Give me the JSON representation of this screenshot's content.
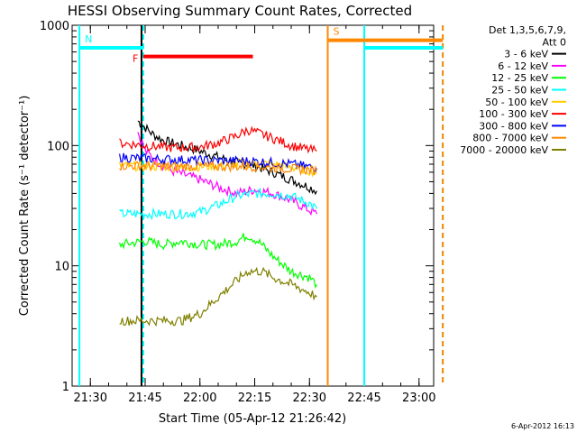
{
  "chart_data": {
    "type": "line",
    "title": "HESSI Observing Summary Count Rates, Corrected",
    "xlabel": "Start Time (05-Apr-12 21:26:42)",
    "ylabel": "Corrected Count Rate (s⁻¹ detector⁻¹)",
    "timestamp": "6-Apr-2012 16:13",
    "x_unit": "minutes",
    "xlim": [
      21.4167,
      23.0667
    ],
    "ylim": [
      1,
      1000
    ],
    "y_scale": "log",
    "x_ticks": [
      "21:30",
      "21:45",
      "22:00",
      "22:15",
      "22:30",
      "22:45",
      "23:00"
    ],
    "y_ticks": [
      "1",
      "10",
      "100",
      "1000"
    ],
    "legend": {
      "position": "top-right",
      "header": [
        "Det 1,3,5,6,7,9,",
        "Att 0"
      ]
    },
    "series": [
      {
        "name": "3 - 6 keV",
        "color": "#000000",
        "x": [
          "21:43",
          "21:44",
          "21:47",
          "21:50",
          "21:55",
          "22:00",
          "22:05",
          "22:10",
          "22:15",
          "22:20",
          "22:25",
          "22:30",
          "22:32"
        ],
        "y": [
          160,
          150,
          125,
          110,
          100,
          90,
          80,
          72,
          68,
          60,
          52,
          45,
          42
        ]
      },
      {
        "name": "6 - 12 keV",
        "color": "#ff00ff",
        "x": [
          "21:43",
          "21:45",
          "21:48",
          "21:52",
          "22:00",
          "22:05",
          "22:10",
          "22:15",
          "22:20",
          "22:25",
          "22:30",
          "22:32"
        ],
        "y": [
          130,
          90,
          75,
          62,
          52,
          45,
          40,
          43,
          40,
          35,
          29,
          27
        ]
      },
      {
        "name": "12 - 25 keV",
        "color": "#00ff00",
        "x": [
          "21:38",
          "21:45",
          "21:50",
          "21:55",
          "22:00",
          "22:05",
          "22:10",
          "22:13",
          "22:16",
          "22:20",
          "22:25",
          "22:30",
          "22:32"
        ],
        "y": [
          15,
          16,
          15,
          16,
          15,
          15,
          16,
          18,
          16,
          12,
          9,
          8,
          7
        ]
      },
      {
        "name": "25 - 50 keV",
        "color": "#00ffff",
        "x": [
          "21:38",
          "21:45",
          "21:55",
          "22:00",
          "22:05",
          "22:10",
          "22:15",
          "22:20",
          "22:25",
          "22:30",
          "22:32"
        ],
        "y": [
          27,
          27,
          27,
          28,
          32,
          38,
          40,
          40,
          38,
          33,
          30
        ]
      },
      {
        "name": "50 - 100 keV",
        "color": "#ffcc00",
        "x": [
          "21:38",
          "21:45",
          "21:55",
          "22:05",
          "22:15",
          "22:20",
          "22:25",
          "22:30",
          "22:32"
        ],
        "y": [
          68,
          67,
          66,
          68,
          72,
          70,
          66,
          62,
          60
        ]
      },
      {
        "name": "100 - 300 keV",
        "color": "#ff0000",
        "x": [
          "21:38",
          "21:45",
          "21:52",
          "22:00",
          "22:05",
          "22:10",
          "22:13",
          "22:15",
          "22:20",
          "22:25",
          "22:30",
          "22:32"
        ],
        "y": [
          105,
          100,
          96,
          97,
          105,
          120,
          135,
          130,
          115,
          100,
          92,
          90
        ]
      },
      {
        "name": "300 - 800 keV",
        "color": "#0000ff",
        "x": [
          "21:38",
          "21:45",
          "21:55",
          "22:05",
          "22:15",
          "22:25",
          "22:32"
        ],
        "y": [
          80,
          78,
          76,
          75,
          74,
          70,
          65
        ]
      },
      {
        "name": "800 - 7000 keV",
        "color": "#ff8800",
        "x": [
          "21:38",
          "21:45",
          "21:55",
          "22:05",
          "22:15",
          "22:25",
          "22:32"
        ],
        "y": [
          68,
          68,
          67,
          67,
          67,
          64,
          62
        ]
      },
      {
        "name": "7000 - 20000 keV",
        "color": "#808000",
        "x": [
          "21:38",
          "21:45",
          "21:55",
          "22:00",
          "22:05",
          "22:10",
          "22:13",
          "22:17",
          "22:20",
          "22:25",
          "22:30",
          "22:32"
        ],
        "y": [
          3.5,
          3.5,
          3.5,
          4,
          5.5,
          7.5,
          9,
          9,
          8,
          7,
          6,
          5.5
        ]
      }
    ],
    "flag_bars": [
      {
        "label": "N",
        "color": "#00ffff",
        "x": [
          "21:27",
          "21:44.5"
        ],
        "y": 650
      },
      {
        "label": "F",
        "color": "#ff0000",
        "x": [
          "21:44.5",
          "22:14.5"
        ],
        "y": 550
      },
      {
        "label": "S",
        "color": "#ff8800",
        "x": [
          "22:35",
          "23:06.5"
        ],
        "y": 750
      },
      {
        "label": "",
        "color": "#00ffff",
        "x": [
          "22:45",
          "23:06.5"
        ],
        "y": 650
      }
    ],
    "vertical_markers": [
      {
        "color": "#00ffff",
        "x": "21:27",
        "style": "solid"
      },
      {
        "color": "#00ffff",
        "x": "21:44.5",
        "style": "dashed"
      },
      {
        "color": "#000000",
        "x": "21:44",
        "style": "solid"
      },
      {
        "color": "#ff8800",
        "x": "22:35",
        "style": "solid"
      },
      {
        "color": "#00ffff",
        "x": "22:45",
        "style": "solid"
      },
      {
        "color": "#00ffff",
        "x": "23:06.5",
        "style": "dashed"
      },
      {
        "color": "#ff8800",
        "x": "23:06.5",
        "style": "dashed"
      }
    ]
  }
}
